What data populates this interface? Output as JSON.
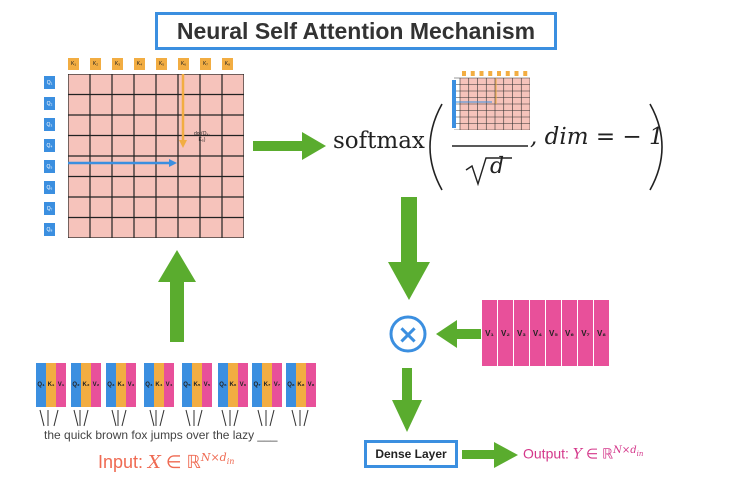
{
  "title": "Neural Self Attention Mechanism",
  "keys": [
    "K₁",
    "K₂",
    "K₃",
    "K₄",
    "K₅",
    "K₆",
    "K₇",
    "K₈"
  ],
  "queries": [
    "Q₁",
    "Q₂",
    "Q₃",
    "Q₄",
    "Q₅",
    "Q₆",
    "Q₇",
    "Q₈"
  ],
  "dot_label_line1": "dot(Q₄,",
  "dot_label_line2": "K₅)",
  "softmax_label": "softmax",
  "dim_text": ", dim = − 1",
  "sqrt_d": "√d",
  "values": [
    "V₁",
    "V₂",
    "V₃",
    "V₄",
    "V₅",
    "V₆",
    "V₇",
    "V₈"
  ],
  "multiply_symbol": "×",
  "dense_layer": "Dense Layer",
  "output_label": "Output: Y ∈ ℝ^{N×d_in}",
  "input_label": "Input: X ∈ ℝ^{N×d_in}",
  "sentence": "the quick brown fox jumps over the lazy ___",
  "token_groups": [
    [
      "Q₁",
      "K₁",
      "V₁"
    ],
    [
      "Q₂",
      "K₂",
      "V₂"
    ],
    [
      "Q₃",
      "K₃",
      "V₃"
    ],
    [
      "Q₄",
      "K₄",
      "V₄"
    ],
    [
      "Q₅",
      "K₅",
      "V₅"
    ],
    [
      "Q₆",
      "K₆",
      "V₆"
    ],
    [
      "Q₇",
      "K₇",
      "V₇"
    ],
    [
      "Q₈",
      "K₈",
      "V₈"
    ]
  ],
  "colors": {
    "query": "#3b8fe0",
    "key": "#f2ad42",
    "value": "#e8509a",
    "grid": "#f6c3bb",
    "arrow": "#5aac2e",
    "accent_blue": "#3b8fe0",
    "input": "#ef6a52",
    "output": "#d4368a"
  }
}
